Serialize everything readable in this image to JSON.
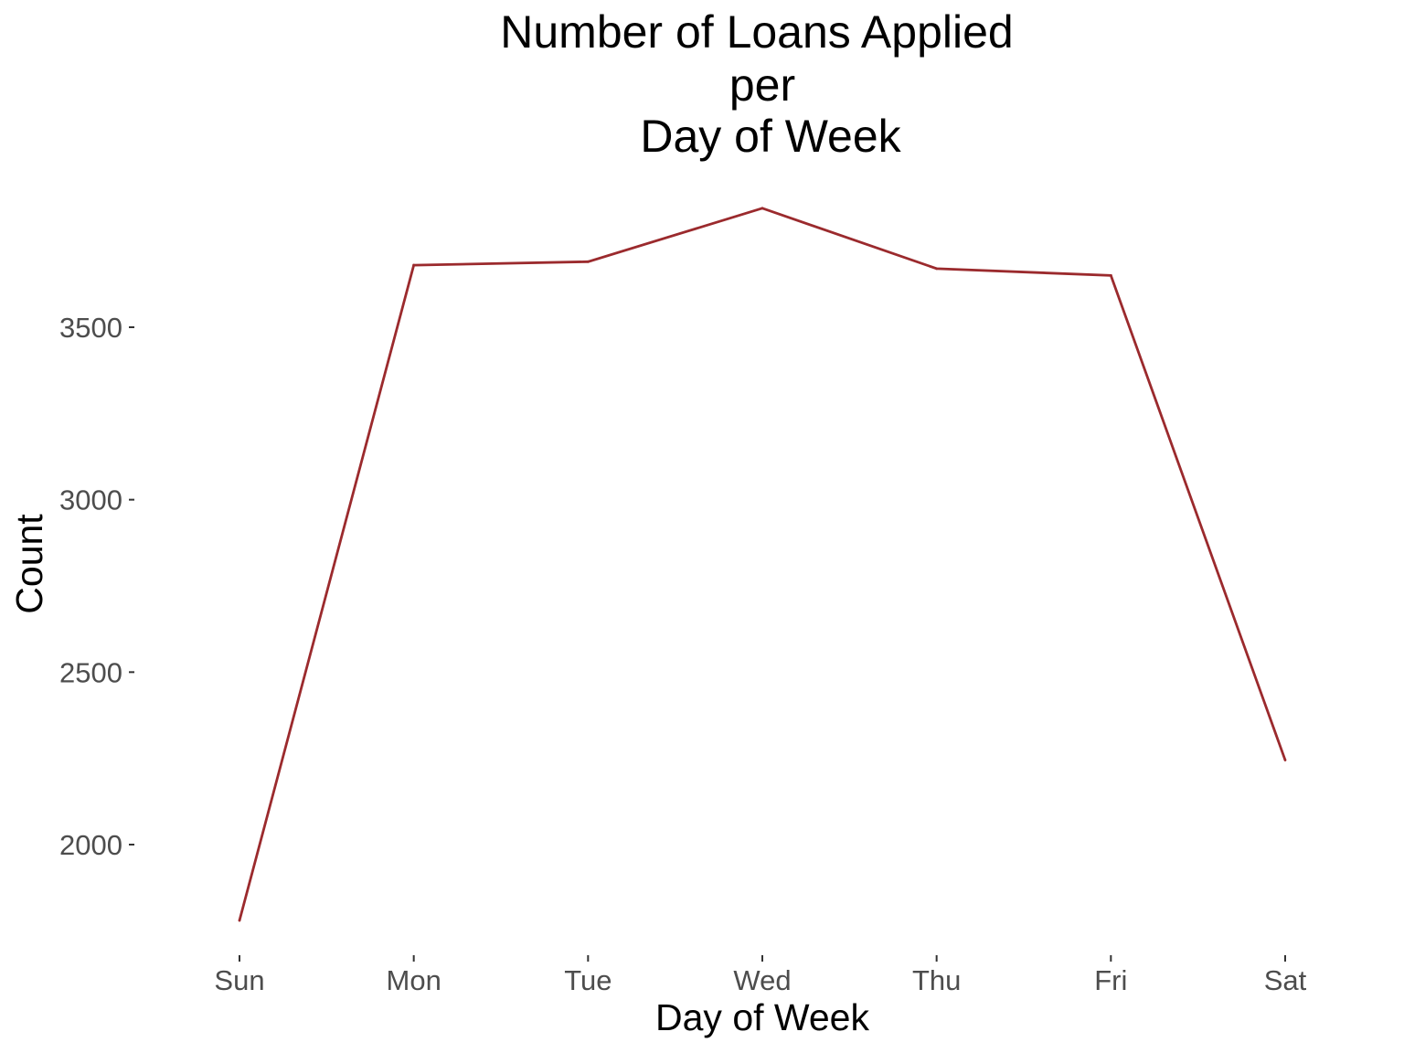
{
  "chart_data": {
    "type": "line",
    "title_lines": [
      "Number of Loans Applied",
      "per",
      "Day of Week"
    ],
    "xlabel": "Day of Week",
    "ylabel": "Count",
    "categories": [
      "Sun",
      "Mon",
      "Tue",
      "Wed",
      "Thu",
      "Fri",
      "Sat"
    ],
    "values": [
      1780,
      3680,
      3690,
      3845,
      3670,
      3650,
      2245
    ],
    "yticks": [
      2000,
      2500,
      3000,
      3500
    ],
    "ylim": [
      1720,
      3900
    ],
    "grid": false,
    "line_color": "#9b2a2d"
  }
}
